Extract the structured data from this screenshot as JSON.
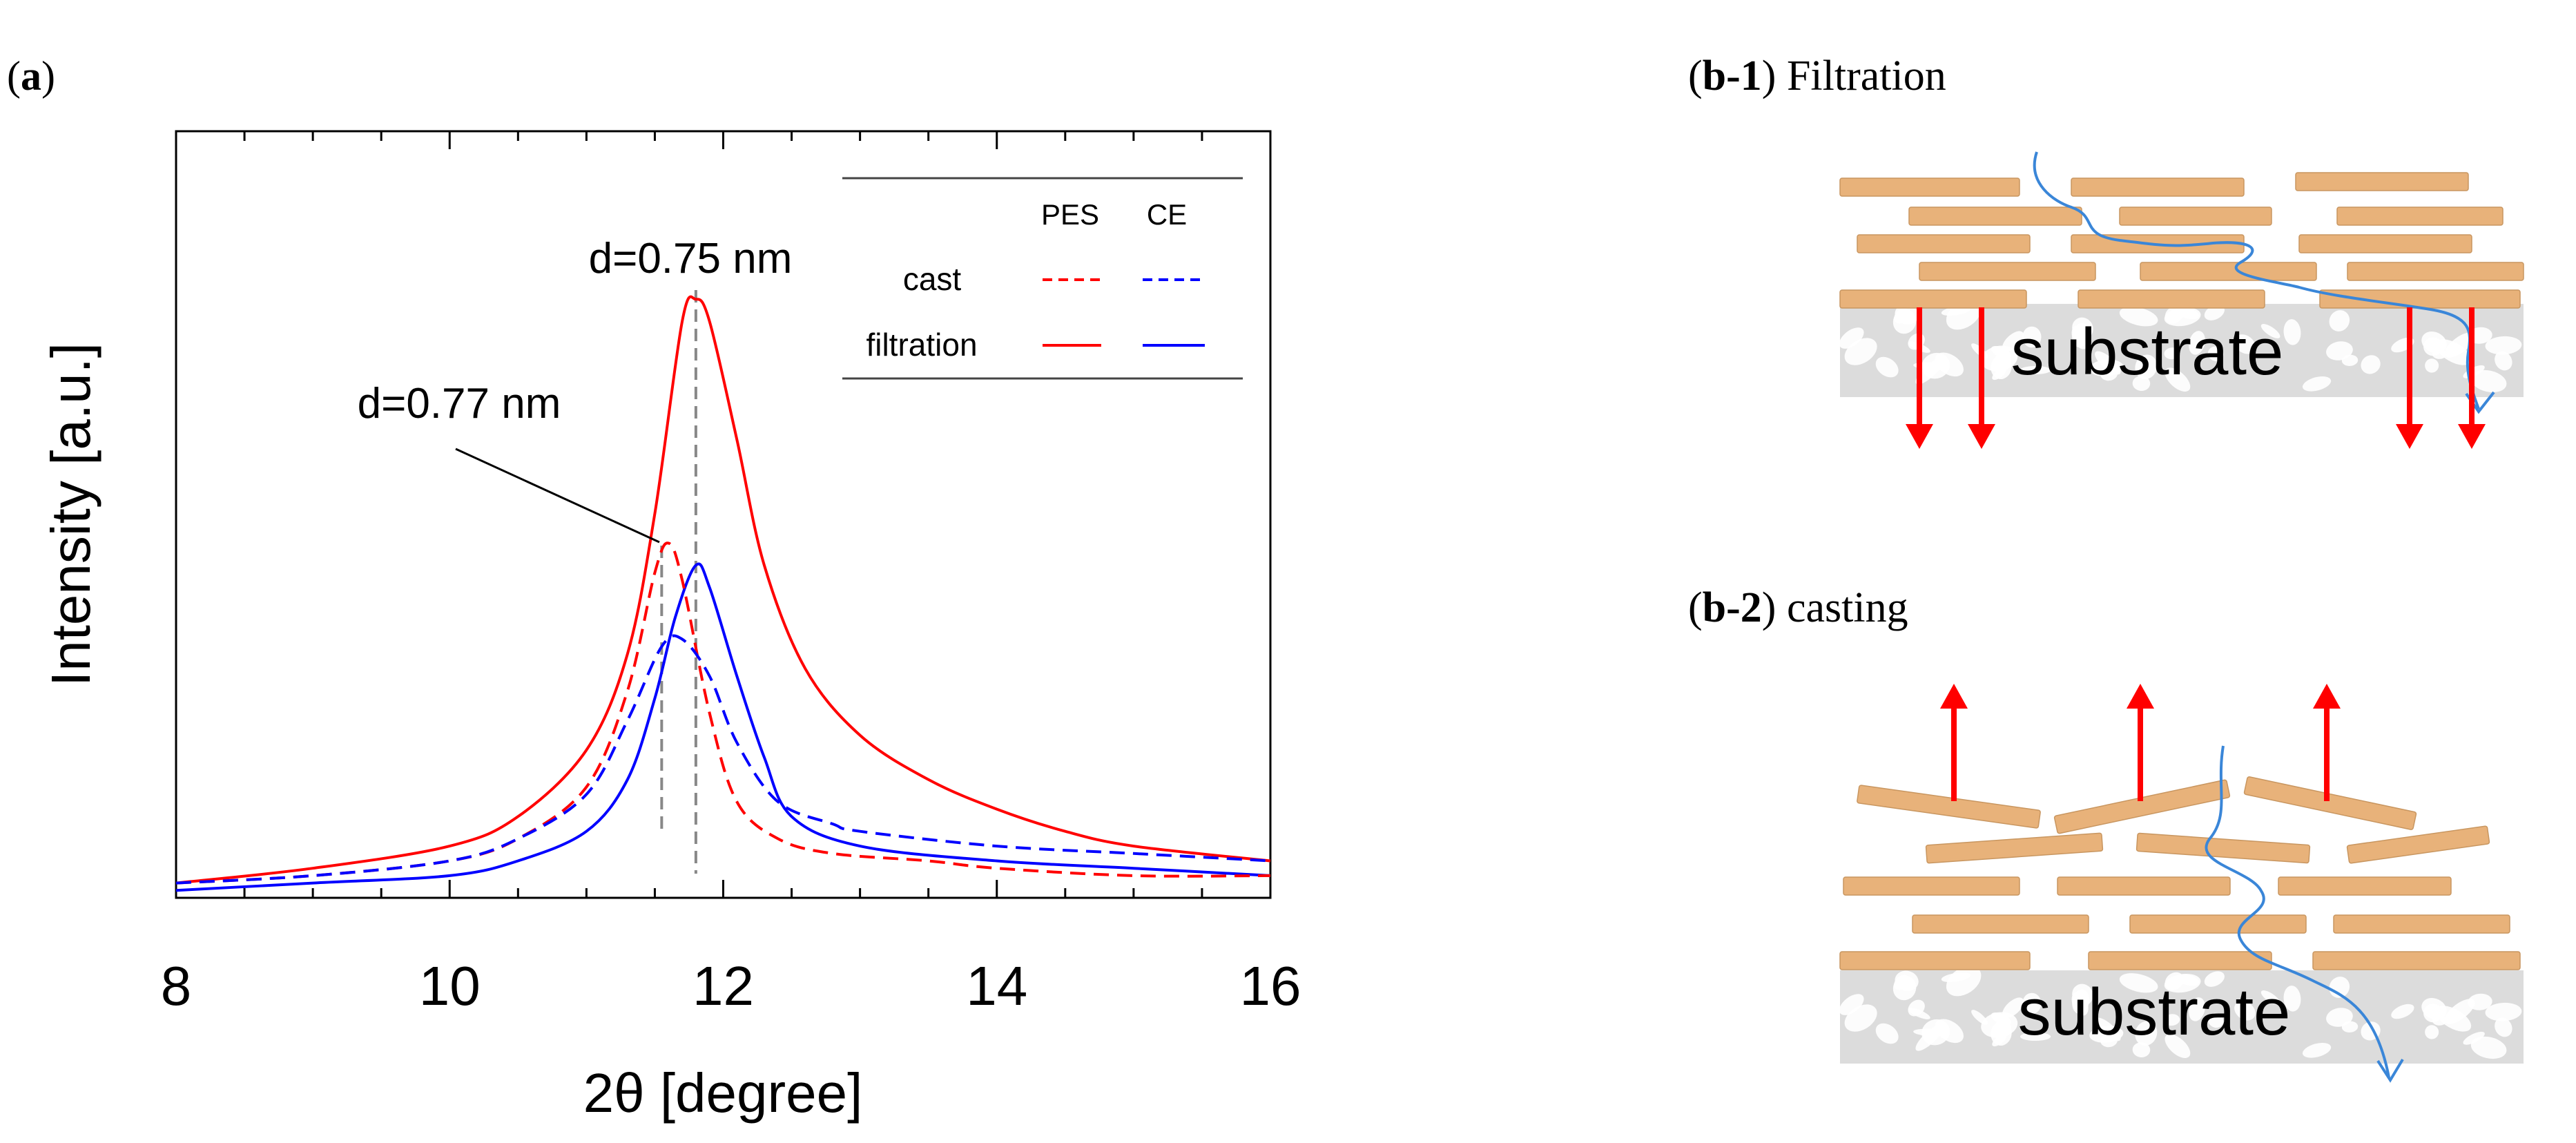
{
  "panel_a": {
    "label_open": "(",
    "label_bold": "a",
    "label_close": ")"
  },
  "panel_b1": {
    "label_open": "(",
    "label_bold": "b-1",
    "label_close": ")",
    "title": " Filtration",
    "substrate_label": "substrate"
  },
  "panel_b2": {
    "label_open": "(",
    "label_bold": "b-2",
    "label_close": ")",
    "title": " casting",
    "substrate_label": "substrate"
  },
  "colors": {
    "red": "#ff0000",
    "blue": "#0000ff",
    "flake": "#e8b27a",
    "substrate": "#d9d9d9",
    "flow": "#3a86d8",
    "guide": "#888888"
  },
  "chart_data": {
    "type": "line",
    "xlabel": "2θ [degree]",
    "ylabel": "Intensity [a.u.]",
    "xlim": [
      8,
      16
    ],
    "ylim": [
      0,
      1
    ],
    "xticks": [
      "8",
      "10",
      "12",
      "14",
      "16"
    ],
    "legend": {
      "placement": "top-right",
      "col1": "PES",
      "col2": "CE",
      "row1": "cast",
      "row2": "filtration"
    },
    "annotations": [
      {
        "text": "d=0.75 nm",
        "x": 11.8
      },
      {
        "text": "d=0.77 nm",
        "x": 11.55
      }
    ],
    "series": [
      {
        "name": "PES filtration",
        "color": "#ff0000",
        "style": "solid",
        "x": [
          8,
          9,
          10,
          10.5,
          11,
          11.3,
          11.5,
          11.7,
          11.8,
          11.9,
          12.1,
          12.3,
          12.6,
          13,
          13.5,
          14,
          14.5,
          15,
          16
        ],
        "y": [
          0.02,
          0.04,
          0.07,
          0.11,
          0.2,
          0.33,
          0.52,
          0.78,
          0.81,
          0.78,
          0.62,
          0.45,
          0.31,
          0.22,
          0.16,
          0.12,
          0.09,
          0.07,
          0.05
        ]
      },
      {
        "name": "CE filtration",
        "color": "#0000ff",
        "style": "solid",
        "x": [
          8,
          9,
          10,
          10.5,
          11,
          11.3,
          11.5,
          11.65,
          11.8,
          11.9,
          12.1,
          12.3,
          12.5,
          13,
          14,
          15,
          16
        ],
        "y": [
          0.01,
          0.02,
          0.03,
          0.05,
          0.09,
          0.16,
          0.27,
          0.38,
          0.45,
          0.42,
          0.3,
          0.19,
          0.11,
          0.07,
          0.05,
          0.04,
          0.03
        ]
      },
      {
        "name": "PES cast",
        "color": "#ff0000",
        "style": "dashed",
        "x": [
          8,
          9,
          10,
          10.5,
          11,
          11.3,
          11.5,
          11.6,
          11.7,
          11.9,
          12.1,
          12.4,
          12.8,
          13.5,
          14,
          15,
          16
        ],
        "y": [
          0.02,
          0.03,
          0.05,
          0.08,
          0.15,
          0.28,
          0.44,
          0.48,
          0.43,
          0.25,
          0.13,
          0.08,
          0.06,
          0.05,
          0.04,
          0.03,
          0.03
        ]
      },
      {
        "name": "CE cast",
        "color": "#0000ff",
        "style": "dashed",
        "x": [
          8,
          9,
          10,
          10.5,
          11,
          11.3,
          11.55,
          11.7,
          11.9,
          12.1,
          12.4,
          12.8,
          13,
          14,
          15,
          16
        ],
        "y": [
          0.02,
          0.03,
          0.05,
          0.08,
          0.14,
          0.24,
          0.34,
          0.35,
          0.3,
          0.21,
          0.13,
          0.1,
          0.09,
          0.07,
          0.06,
          0.05
        ]
      }
    ]
  }
}
